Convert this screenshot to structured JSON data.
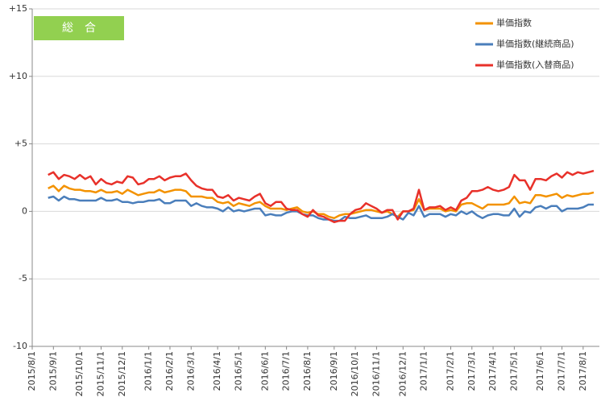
{
  "chart_data": {
    "type": "line",
    "annotation": "総　合",
    "categories": [
      "2015/8/1",
      null,
      null,
      null,
      "2015/9/1",
      null,
      null,
      null,
      null,
      "2015/10/1",
      null,
      null,
      null,
      "2015/11/1",
      null,
      null,
      null,
      "2015/12/1",
      null,
      null,
      null,
      null,
      "2016/1/1",
      null,
      null,
      null,
      "2016/2/1",
      null,
      null,
      null,
      "2016/3/1",
      null,
      null,
      null,
      null,
      "2016/4/1",
      null,
      null,
      null,
      "2016/5/1",
      null,
      null,
      null,
      null,
      "2016/6/1",
      null,
      null,
      null,
      "2016/7/1",
      null,
      null,
      null,
      "2016/8/1",
      null,
      null,
      null,
      null,
      "2016/9/1",
      null,
      null,
      null,
      "2016/10/1",
      null,
      null,
      null,
      "2016/11/1",
      null,
      null,
      null,
      null,
      "2016/12/1",
      null,
      null,
      null,
      "2017/1/1",
      null,
      null,
      null,
      null,
      "2017/2/1",
      null,
      null,
      null,
      "2017/3/1",
      null,
      null,
      null,
      "2017/4/1",
      null,
      null,
      null,
      "2017/5/1",
      null,
      null,
      null,
      null,
      "2017/6/1",
      null,
      null,
      null,
      "2017/7/1",
      null,
      null,
      null,
      "2017/8/1",
      null,
      null
    ],
    "series": [
      {
        "name": "単価指数",
        "color": "#f39200",
        "values": [
          null,
          null,
          null,
          1.7,
          1.9,
          1.5,
          1.9,
          1.7,
          1.6,
          1.6,
          1.5,
          1.5,
          1.4,
          1.6,
          1.4,
          1.4,
          1.5,
          1.3,
          1.6,
          1.4,
          1.2,
          1.3,
          1.4,
          1.4,
          1.6,
          1.4,
          1.5,
          1.6,
          1.6,
          1.5,
          1.1,
          1.1,
          1.1,
          1.0,
          1.0,
          0.7,
          0.6,
          0.7,
          0.4,
          0.6,
          0.5,
          0.4,
          0.6,
          0.7,
          0.4,
          0.2,
          0.2,
          0.2,
          0.1,
          0.2,
          0.3,
          0.0,
          -0.1,
          0.0,
          -0.2,
          -0.2,
          -0.4,
          -0.5,
          -0.3,
          -0.2,
          -0.2,
          -0.1,
          0.0,
          0.1,
          0.1,
          0.0,
          -0.1,
          0.0,
          -0.2,
          -0.4,
          0.0,
          0.0,
          0.1,
          0.9,
          0.1,
          0.2,
          0.2,
          0.2,
          0.0,
          0.1,
          0.0,
          0.5,
          0.6,
          0.6,
          0.4,
          0.2,
          0.5,
          0.5,
          0.5,
          0.5,
          0.6,
          1.1,
          0.6,
          0.7,
          0.6,
          1.2,
          1.2,
          1.1,
          1.2,
          1.3,
          1.0,
          1.2,
          1.1,
          1.2,
          1.3,
          1.3,
          1.4
        ]
      },
      {
        "name": "単価指数(継続商品)",
        "color": "#4a7ebb",
        "values": [
          null,
          null,
          null,
          1.0,
          1.1,
          0.8,
          1.1,
          0.9,
          0.9,
          0.8,
          0.8,
          0.8,
          0.8,
          1.0,
          0.8,
          0.8,
          0.9,
          0.7,
          0.7,
          0.6,
          0.7,
          0.7,
          0.8,
          0.8,
          0.9,
          0.6,
          0.6,
          0.8,
          0.8,
          0.8,
          0.4,
          0.6,
          0.4,
          0.3,
          0.3,
          0.2,
          0.0,
          0.3,
          0.0,
          0.1,
          0.0,
          0.1,
          0.2,
          0.2,
          -0.3,
          -0.2,
          -0.3,
          -0.3,
          -0.1,
          0.0,
          0.0,
          -0.2,
          -0.3,
          -0.3,
          -0.5,
          -0.6,
          -0.6,
          -0.7,
          -0.7,
          -0.4,
          -0.5,
          -0.5,
          -0.4,
          -0.3,
          -0.5,
          -0.5,
          -0.5,
          -0.4,
          -0.2,
          -0.4,
          -0.6,
          -0.1,
          -0.3,
          0.4,
          -0.4,
          -0.2,
          -0.2,
          -0.2,
          -0.4,
          -0.2,
          -0.3,
          0.0,
          -0.2,
          0.0,
          -0.3,
          -0.5,
          -0.3,
          -0.2,
          -0.2,
          -0.3,
          -0.3,
          0.2,
          -0.4,
          0.0,
          -0.1,
          0.3,
          0.4,
          0.2,
          0.4,
          0.4,
          0.0,
          0.2,
          0.2,
          0.2,
          0.3,
          0.5,
          0.5
        ]
      },
      {
        "name": "単価指数(入替商品)",
        "color": "#e8312a",
        "values": [
          null,
          null,
          null,
          2.7,
          2.9,
          2.4,
          2.7,
          2.6,
          2.4,
          2.7,
          2.4,
          2.6,
          2.0,
          2.4,
          2.1,
          2.0,
          2.2,
          2.1,
          2.6,
          2.5,
          2.0,
          2.1,
          2.4,
          2.4,
          2.6,
          2.3,
          2.5,
          2.6,
          2.6,
          2.8,
          2.3,
          1.9,
          1.7,
          1.6,
          1.6,
          1.1,
          1.0,
          1.2,
          0.8,
          1.0,
          0.9,
          0.8,
          1.1,
          1.3,
          0.6,
          0.4,
          0.7,
          0.7,
          0.2,
          0.1,
          0.1,
          -0.2,
          -0.4,
          0.1,
          -0.3,
          -0.4,
          -0.6,
          -0.8,
          -0.7,
          -0.7,
          -0.2,
          0.1,
          0.2,
          0.6,
          0.4,
          0.2,
          -0.1,
          0.1,
          0.1,
          -0.6,
          0.0,
          0.0,
          0.2,
          1.6,
          0.1,
          0.3,
          0.3,
          0.4,
          0.1,
          0.3,
          0.1,
          0.8,
          1.0,
          1.5,
          1.5,
          1.6,
          1.8,
          1.6,
          1.5,
          1.6,
          1.8,
          2.7,
          2.3,
          2.3,
          1.6,
          2.4,
          2.4,
          2.3,
          2.6,
          2.8,
          2.5,
          2.9,
          2.7,
          2.9,
          2.8,
          2.9,
          3.0
        ]
      }
    ],
    "ylim": [
      -10,
      15
    ],
    "yticks": [
      -10,
      -5,
      0,
      {
        "value": 5,
        "label": "+5"
      },
      {
        "value": 10,
        "label": "+10"
      },
      {
        "value": 15,
        "label": "+15"
      }
    ],
    "grid": true,
    "legend": "upper right"
  }
}
